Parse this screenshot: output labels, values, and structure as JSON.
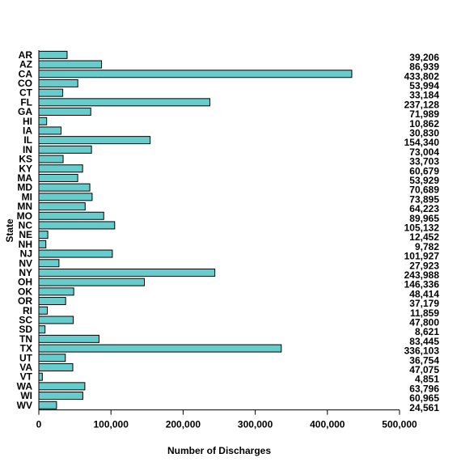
{
  "chart_data": {
    "type": "bar",
    "orientation": "horizontal",
    "xlabel": "Number of Discharges",
    "ylabel": "State",
    "xlim": [
      0,
      500000
    ],
    "x_ticks": [
      "0",
      "100,000",
      "200,000",
      "300,000",
      "400,000",
      "500,000"
    ],
    "grid": false,
    "bar_color": "#66cccc",
    "categories": [
      "AR",
      "AZ",
      "CA",
      "CO",
      "CT",
      "FL",
      "GA",
      "HI",
      "IA",
      "IL",
      "IN",
      "KS",
      "KY",
      "MA",
      "MD",
      "MI",
      "MN",
      "MO",
      "NC",
      "NE",
      "NH",
      "NJ",
      "NV",
      "NY",
      "OH",
      "OK",
      "OR",
      "RI",
      "SC",
      "SD",
      "TN",
      "TX",
      "UT",
      "VA",
      "VT",
      "WA",
      "WI",
      "WV"
    ],
    "values": [
      39206,
      86939,
      433802,
      53994,
      33184,
      237128,
      71989,
      10862,
      30830,
      154340,
      73004,
      33703,
      60679,
      53929,
      70689,
      73895,
      64223,
      89965,
      105132,
      12452,
      9782,
      101927,
      27923,
      243988,
      146336,
      48414,
      37179,
      11859,
      47800,
      8621,
      83445,
      336103,
      36754,
      47075,
      4851,
      63796,
      60965,
      24561
    ],
    "value_labels": [
      "39,206",
      "86,939",
      "433,802",
      "53,994",
      "33,184",
      "237,128",
      "71,989",
      "10,862",
      "30,830",
      "154,340",
      "73,004",
      "33,703",
      "60,679",
      "53,929",
      "70,689",
      "73,895",
      "64,223",
      "89,965",
      "105,132",
      "12,452",
      "9,782",
      "101,927",
      "27,923",
      "243,988",
      "146,336",
      "48,414",
      "37,179",
      "11,859",
      "47,800",
      "8,621",
      "83,445",
      "336,103",
      "36,754",
      "47,075",
      "4,851",
      "63,796",
      "60,965",
      "24,561"
    ]
  }
}
